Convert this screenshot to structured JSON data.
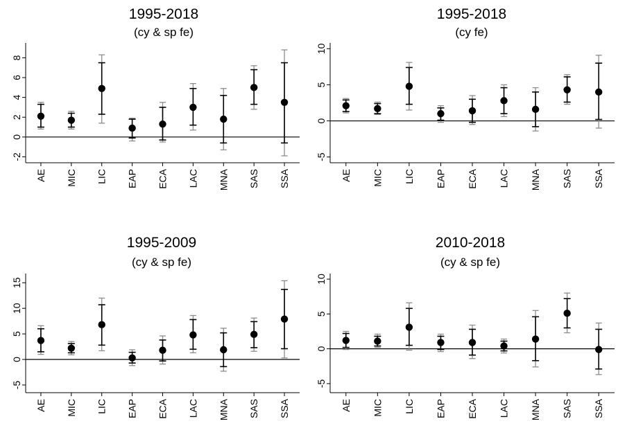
{
  "chart_data": [
    {
      "type": "scatter",
      "title": "1995-2018",
      "subtitle": "(cy & sp fe)",
      "categories": [
        "AE",
        "MIC",
        "LIC",
        "EAP",
        "ECA",
        "LAC",
        "MNA",
        "SAS",
        "SSA"
      ],
      "ylim": [
        -2.6,
        9.5
      ],
      "yticks": [
        -2,
        0,
        2,
        4,
        6,
        8
      ],
      "zero_line": true,
      "point": [
        2.1,
        1.7,
        4.9,
        0.9,
        1.3,
        3.0,
        1.8,
        5.0,
        3.5
      ],
      "ci_inner": [
        [
          1.0,
          3.3
        ],
        [
          1.0,
          2.4
        ],
        [
          2.3,
          7.5
        ],
        [
          -0.1,
          1.8
        ],
        [
          -0.3,
          3.0
        ],
        [
          1.2,
          4.9
        ],
        [
          -0.6,
          4.2
        ],
        [
          3.3,
          6.8
        ],
        [
          -0.6,
          7.5
        ]
      ],
      "ci_outer": [
        [
          0.8,
          3.5
        ],
        [
          0.8,
          2.6
        ],
        [
          1.4,
          8.3
        ],
        [
          -0.4,
          1.9
        ],
        [
          -0.5,
          3.5
        ],
        [
          0.7,
          5.4
        ],
        [
          -1.3,
          4.9
        ],
        [
          2.8,
          7.2
        ],
        [
          -1.9,
          8.8
        ]
      ]
    },
    {
      "type": "scatter",
      "title": "1995-2018",
      "subtitle": "(cy fe)",
      "categories": [
        "AE",
        "MIC",
        "LIC",
        "EAP",
        "ECA",
        "LAC",
        "MNA",
        "SAS",
        "SSA"
      ],
      "ylim": [
        -5.8,
        10.8
      ],
      "yticks": [
        -5,
        0,
        5,
        10
      ],
      "zero_line": true,
      "point": [
        2.1,
        1.7,
        4.8,
        1.0,
        1.4,
        2.8,
        1.6,
        4.3,
        4.0
      ],
      "ci_inner": [
        [
          1.3,
          2.9
        ],
        [
          1.0,
          2.4
        ],
        [
          2.3,
          7.4
        ],
        [
          0.1,
          1.8
        ],
        [
          -0.2,
          3.0
        ],
        [
          1.0,
          4.6
        ],
        [
          -0.8,
          4.0
        ],
        [
          2.6,
          6.1
        ],
        [
          0.2,
          8.0
        ]
      ],
      "ci_outer": [
        [
          1.1,
          3.1
        ],
        [
          0.9,
          2.6
        ],
        [
          1.5,
          8.1
        ],
        [
          -0.2,
          2.1
        ],
        [
          -0.5,
          3.5
        ],
        [
          0.6,
          5.0
        ],
        [
          -1.4,
          4.6
        ],
        [
          2.3,
          6.4
        ],
        [
          -1.0,
          9.1
        ]
      ]
    },
    {
      "type": "scatter",
      "title": "1995-2009",
      "subtitle": "(cy & sp fe)",
      "categories": [
        "AE",
        "MIC",
        "LIC",
        "EAP",
        "ECA",
        "LAC",
        "MNA",
        "SAS",
        "SSA"
      ],
      "ylim": [
        -6.5,
        16.8
      ],
      "yticks": [
        -5,
        0,
        5,
        10,
        15
      ],
      "zero_line": true,
      "point": [
        3.7,
        2.2,
        6.8,
        0.3,
        1.8,
        4.8,
        1.9,
        4.9,
        7.9
      ],
      "ci_inner": [
        [
          1.5,
          6.0
        ],
        [
          1.3,
          3.1
        ],
        [
          2.8,
          10.7
        ],
        [
          -0.7,
          1.4
        ],
        [
          -0.3,
          3.8
        ],
        [
          2.0,
          7.8
        ],
        [
          -1.4,
          5.2
        ],
        [
          2.3,
          7.4
        ],
        [
          2.1,
          13.7
        ]
      ],
      "ci_outer": [
        [
          1.0,
          6.6
        ],
        [
          0.9,
          3.5
        ],
        [
          1.7,
          12.0
        ],
        [
          -1.2,
          1.9
        ],
        [
          -0.9,
          4.6
        ],
        [
          1.3,
          8.6
        ],
        [
          -2.3,
          6.1
        ],
        [
          1.6,
          8.1
        ],
        [
          0.3,
          15.4
        ]
      ]
    },
    {
      "type": "scatter",
      "title": "2010-2018",
      "subtitle": "(cy & sp fe)",
      "categories": [
        "AE",
        "MIC",
        "LIC",
        "EAP",
        "ECA",
        "LAC",
        "MNA",
        "SAS",
        "SSA"
      ],
      "ylim": [
        -6.3,
        10.8
      ],
      "yticks": [
        -5,
        0,
        5,
        10
      ],
      "zero_line": true,
      "point": [
        1.2,
        1.1,
        3.1,
        0.9,
        0.9,
        0.4,
        1.4,
        5.1,
        -0.1
      ],
      "ci_inner": [
        [
          0.2,
          2.2
        ],
        [
          0.4,
          1.8
        ],
        [
          0.5,
          5.8
        ],
        [
          -0.1,
          1.8
        ],
        [
          -0.9,
          2.8
        ],
        [
          -0.3,
          1.1
        ],
        [
          -1.7,
          4.6
        ],
        [
          3.0,
          7.2
        ],
        [
          -2.9,
          2.8
        ]
      ],
      "ci_outer": [
        [
          -0.1,
          2.5
        ],
        [
          0.2,
          2.1
        ],
        [
          -0.2,
          6.6
        ],
        [
          -0.4,
          2.1
        ],
        [
          -1.4,
          3.4
        ],
        [
          -0.6,
          1.4
        ],
        [
          -2.6,
          5.5
        ],
        [
          2.3,
          8.0
        ],
        [
          -3.7,
          3.7
        ]
      ]
    }
  ]
}
